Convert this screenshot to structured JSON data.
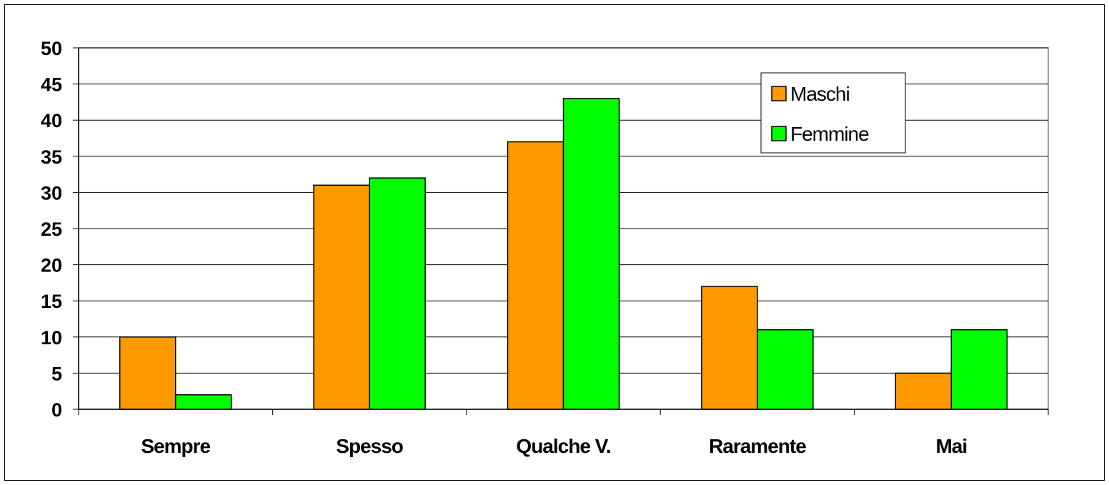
{
  "chart_data": {
    "type": "bar",
    "categories": [
      "Sempre",
      "Spesso",
      "Qualche V.",
      "Raramente",
      "Mai"
    ],
    "series": [
      {
        "name": "Maschi",
        "values": [
          10,
          31,
          37,
          17,
          5
        ],
        "color": "#FF9900"
      },
      {
        "name": "Femmine",
        "values": [
          2,
          32,
          43,
          11,
          11
        ],
        "color": "#00FF00"
      }
    ],
    "ylim": [
      0,
      50
    ],
    "yticks": [
      0,
      5,
      10,
      15,
      20,
      25,
      30,
      35,
      40,
      45,
      50
    ],
    "grid": true,
    "legend_position": "top-right",
    "title": "",
    "xlabel": "",
    "ylabel": ""
  }
}
